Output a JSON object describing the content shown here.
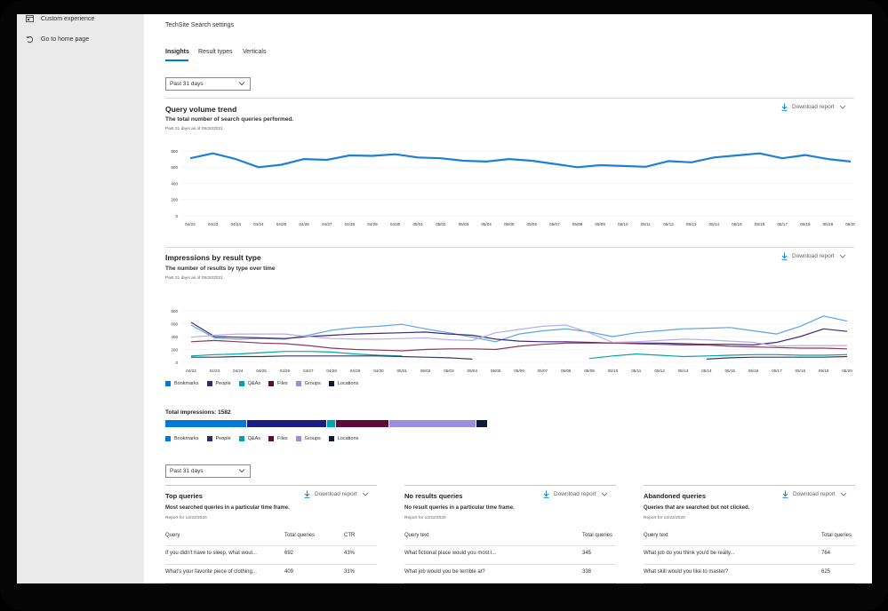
{
  "sidebar": {
    "items": [
      {
        "label": "Custom experience",
        "icon": "custom-experience-icon"
      },
      {
        "label": "Go to home page",
        "icon": "home-back-icon"
      }
    ]
  },
  "header": {
    "title": "TechSite Search settings"
  },
  "tabs": [
    {
      "label": "Insights",
      "active": true
    },
    {
      "label": "Result types"
    },
    {
      "label": "Verticals"
    }
  ],
  "filter_top": {
    "value": "Past 31 days"
  },
  "filter_bottom": {
    "value": "Past 31 days"
  },
  "query_volume": {
    "title": "Query volume trend",
    "subtitle": "The total number of search queries performed.",
    "note": "Past 31 days as of 05/20/2021",
    "download": "Download report"
  },
  "impressions": {
    "title": "Impressions by result type",
    "subtitle": "The number of results by type over time",
    "note": "Past 31 days as of 05/20/2021",
    "download": "Download report",
    "total_label": "Total impressions:",
    "total_value": "1582"
  },
  "legend": [
    {
      "name": "Bookmarks",
      "color": "#0078d4"
    },
    {
      "name": "People",
      "color": "#2b2d6e"
    },
    {
      "name": "Q&As",
      "color": "#00a2ad"
    },
    {
      "name": "Files",
      "color": "#5c0a3c"
    },
    {
      "name": "Groups",
      "color": "#9b8ce0"
    },
    {
      "name": "Locations",
      "color": "#0b1b3b"
    }
  ],
  "total_bar": [
    {
      "name": "Bookmarks",
      "color": "#0078d4",
      "fraction": 0.255
    },
    {
      "name": "People",
      "color": "#1b1d86",
      "fraction": 0.25
    },
    {
      "name": "Q&As",
      "color": "#00a2ad",
      "fraction": 0.025
    },
    {
      "name": "Files",
      "color": "#5c0a3c",
      "fraction": 0.165
    },
    {
      "name": "Groups",
      "color": "#9b8ce0",
      "fraction": 0.27
    },
    {
      "name": "Locations",
      "color": "#0b1b3b",
      "fraction": 0.035
    }
  ],
  "chart_data": [
    {
      "type": "line",
      "title": "Query volume trend",
      "categories": [
        "04/22",
        "04/23",
        "04/24",
        "04/24",
        "04/25",
        "04/26",
        "04/27",
        "04/28",
        "04/29",
        "04/30",
        "05/01",
        "05/02",
        "05/03",
        "05/04",
        "05/05",
        "05/06",
        "05/07",
        "05/08",
        "05/09",
        "05/10",
        "05/11",
        "05/12",
        "05/13",
        "05/14",
        "05/15",
        "05/16",
        "05/17",
        "05/18",
        "05/19",
        "05/20"
      ],
      "ylim": [
        0,
        800
      ],
      "yticks": [
        0,
        200,
        400,
        600,
        800
      ],
      "series": [
        {
          "color": "#1e7fd6",
          "values": [
            710,
            770,
            700,
            600,
            630,
            700,
            690,
            745,
            740,
            760,
            720,
            710,
            680,
            670,
            700,
            680,
            640,
            600,
            625,
            615,
            605,
            675,
            660,
            720,
            745,
            770,
            710,
            750,
            700,
            670
          ]
        }
      ]
    },
    {
      "type": "line",
      "title": "Impressions by result type",
      "categories": [
        "04/22",
        "04/23",
        "04/24",
        "04/25",
        "04/26",
        "04/27",
        "04/28",
        "04/29",
        "04/30",
        "05/01",
        "05/02",
        "05/03",
        "05/04",
        "05/05",
        "05/06",
        "05/07",
        "05/08",
        "05/09",
        "05/10",
        "05/11",
        "05/12",
        "05/13",
        "05/14",
        "05/15",
        "05/16",
        "05/17",
        "05/18",
        "05/19",
        "05/20"
      ],
      "ylim": [
        0,
        800
      ],
      "yticks": [
        0,
        200,
        400,
        600,
        800
      ],
      "series": [
        {
          "name": "Bookmarks",
          "color": "#58a5e3",
          "values": [
            580,
            380,
            360,
            370,
            360,
            420,
            500,
            540,
            560,
            590,
            520,
            460,
            390,
            320,
            440,
            490,
            520,
            470,
            400,
            460,
            490,
            520,
            530,
            540,
            490,
            440,
            560,
            720,
            640
          ]
        },
        {
          "name": "People",
          "color": "#3d2c7a",
          "values": [
            620,
            400,
            390,
            380,
            370,
            400,
            420,
            440,
            450,
            460,
            470,
            440,
            420,
            360,
            330,
            320,
            320,
            310,
            300,
            300,
            300,
            290,
            280,
            280,
            270,
            310,
            400,
            520,
            480
          ]
        },
        {
          "name": "Q&As",
          "color": "#00a2ad",
          "values": [
            100,
            120,
            130,
            150,
            170,
            170,
            160,
            130,
            110,
            100,
            null,
            null,
            null,
            null,
            null,
            null,
            null,
            60,
            100,
            130,
            110,
            90,
            100,
            110,
            120,
            120,
            110,
            110,
            120
          ]
        },
        {
          "name": "Files",
          "color": "#8a3a5a",
          "values": [
            320,
            340,
            320,
            300,
            290,
            260,
            220,
            200,
            190,
            180,
            200,
            210,
            210,
            200,
            250,
            280,
            300,
            300,
            300,
            290,
            280,
            270,
            270,
            250,
            240,
            230,
            220,
            220,
            210
          ]
        },
        {
          "name": "Groups",
          "color": "#b7aee8",
          "values": [
            390,
            420,
            440,
            440,
            440,
            400,
            370,
            360,
            360,
            370,
            380,
            350,
            340,
            460,
            510,
            560,
            580,
            460,
            310,
            320,
            340,
            360,
            350,
            330,
            310,
            250,
            260,
            260,
            260
          ]
        },
        {
          "name": "Locations",
          "color": "#303c5a",
          "values": [
            80,
            80,
            90,
            90,
            100,
            100,
            100,
            100,
            100,
            90,
            80,
            70,
            50,
            null,
            null,
            null,
            null,
            null,
            null,
            null,
            null,
            null,
            50,
            70,
            80,
            80,
            80,
            80,
            90
          ]
        }
      ]
    }
  ],
  "tables": [
    {
      "title": "Top queries",
      "subtitle": "Most searched queries in a particular time frame.",
      "note": "Report for 12/22/2020",
      "download": "Download report",
      "headers": [
        "Query",
        "Total queries",
        "CTR"
      ],
      "rows": [
        [
          "If you didn't have to sleep, what woul...",
          "692",
          "43%"
        ],
        [
          "What's your favorite piece of clothing...",
          "409",
          "31%"
        ]
      ]
    },
    {
      "title": "No results queries",
      "subtitle": "No result queries in a particular time frame.",
      "note": "Report for 12/22/2020",
      "download": "Download report",
      "headers": [
        "Query text",
        "Total queries"
      ],
      "rows": [
        [
          "What fictional place would you most l...",
          "345"
        ],
        [
          "What job would you be terrible at?",
          "338"
        ]
      ]
    },
    {
      "title": "Abandoned queries",
      "subtitle": "Queries that are searched but not clicked.",
      "note": "Report for 12/22/2020",
      "download": "Download report",
      "headers": [
        "Query text",
        "Total queries"
      ],
      "rows": [
        [
          "What job do you think you'd be really...",
          "764"
        ],
        [
          "What skill would you like to master?",
          "625"
        ]
      ]
    }
  ]
}
